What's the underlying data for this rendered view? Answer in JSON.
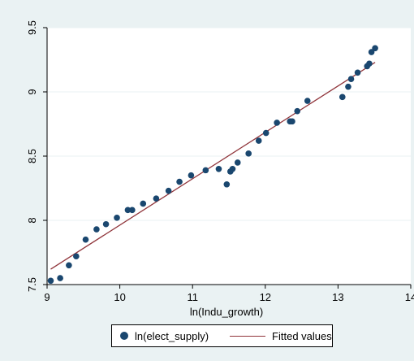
{
  "chart_data": {
    "type": "scatter",
    "title": "",
    "xlabel": "ln(Indu_growth)",
    "ylabel": "",
    "xlim": [
      9,
      14
    ],
    "ylim": [
      7.5,
      9.5
    ],
    "x_ticks": [
      "9",
      "10",
      "11",
      "12",
      "13",
      "14"
    ],
    "y_ticks": [
      "7.5",
      "8",
      "8.5",
      "9",
      "9.5"
    ],
    "grid": "horizontal",
    "legend_placement": "bottom",
    "series": [
      {
        "name": "ln(elect_supply)",
        "kind": "scatter",
        "color": "#1a476f",
        "points": [
          [
            9.05,
            7.53
          ],
          [
            9.18,
            7.55
          ],
          [
            9.3,
            7.65
          ],
          [
            9.4,
            7.72
          ],
          [
            9.53,
            7.85
          ],
          [
            9.68,
            7.93
          ],
          [
            9.81,
            7.97
          ],
          [
            9.96,
            8.02
          ],
          [
            10.11,
            8.08
          ],
          [
            10.17,
            8.08
          ],
          [
            10.32,
            8.13
          ],
          [
            10.5,
            8.17
          ],
          [
            10.67,
            8.23
          ],
          [
            10.82,
            8.3
          ],
          [
            10.98,
            8.35
          ],
          [
            11.18,
            8.39
          ],
          [
            11.36,
            8.4
          ],
          [
            11.47,
            8.28
          ],
          [
            11.52,
            8.38
          ],
          [
            11.55,
            8.4
          ],
          [
            11.62,
            8.45
          ],
          [
            11.77,
            8.52
          ],
          [
            11.91,
            8.62
          ],
          [
            12.01,
            8.68
          ],
          [
            12.16,
            8.76
          ],
          [
            12.34,
            8.77
          ],
          [
            12.37,
            8.77
          ],
          [
            12.44,
            8.85
          ],
          [
            12.58,
            8.93
          ],
          [
            13.06,
            8.96
          ],
          [
            13.14,
            9.04
          ],
          [
            13.18,
            9.1
          ],
          [
            13.27,
            9.15
          ],
          [
            13.4,
            9.2
          ],
          [
            13.43,
            9.22
          ],
          [
            13.46,
            9.31
          ],
          [
            13.51,
            9.34
          ]
        ]
      },
      {
        "name": "Fitted values",
        "kind": "line",
        "color": "#90353b",
        "points": [
          [
            9.05,
            7.62
          ],
          [
            13.51,
            9.23
          ]
        ]
      }
    ]
  }
}
